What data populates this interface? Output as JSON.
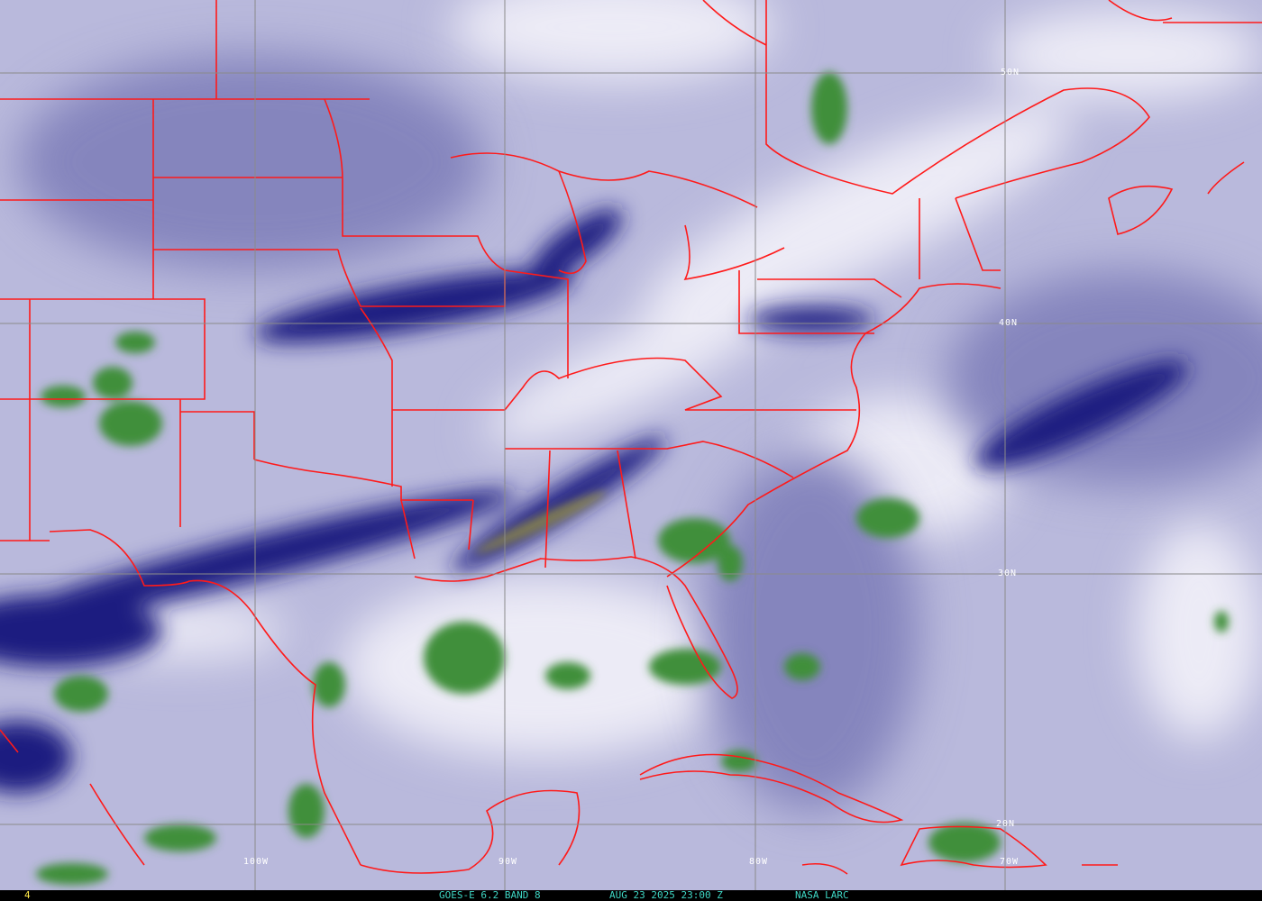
{
  "image": {
    "type": "satellite water vapor imagery",
    "colors": {
      "background": "#b9b9dc",
      "dry_band": "#12127a",
      "moist": "#ffffff",
      "convection": "#3f8f3a",
      "borders": "#ff1a1a",
      "gridlines": "#8a8a8a",
      "footer_text": "#3fd6c4"
    }
  },
  "grid_labels": {
    "lat": [
      "50N",
      "40N",
      "30N",
      "20N"
    ],
    "lon": [
      "100W",
      "90W",
      "80W",
      "70W"
    ]
  },
  "footer": {
    "frame_number": "4",
    "satellite": "GOES-E 6.2 BAND 8",
    "datetime": "AUG 23 2025 23:00 Z",
    "source": "NASA LARC"
  }
}
